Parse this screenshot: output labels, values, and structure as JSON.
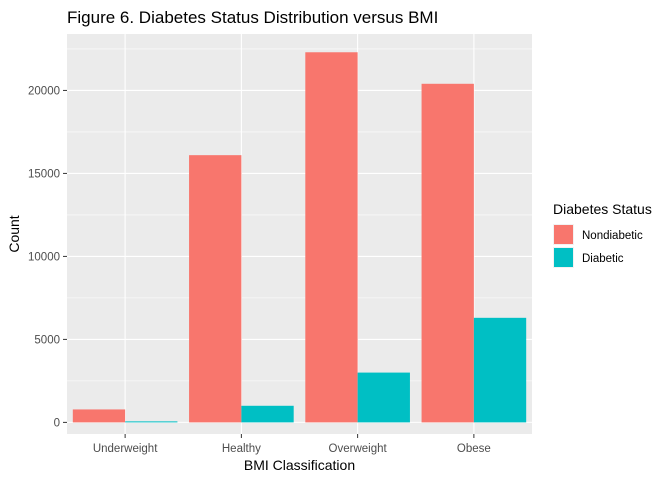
{
  "chart_data": {
    "type": "bar",
    "title": "Figure 6. Diabetes Status Distribution versus BMI",
    "xlabel": "BMI Classification",
    "ylabel": "Count",
    "categories": [
      "Underweight",
      "Healthy",
      "Overweight",
      "Obese"
    ],
    "series": [
      {
        "name": "Nondiabetic",
        "color": "#F8766D",
        "values": [
          780,
          16100,
          22300,
          20400
        ]
      },
      {
        "name": "Diabetic",
        "color": "#00BFC4",
        "values": [
          60,
          1000,
          3000,
          6300
        ]
      }
    ],
    "ylim": [
      -700,
      23400
    ],
    "yticks": [
      0,
      5000,
      10000,
      15000,
      20000
    ],
    "grid": true,
    "panel_background": "#EBEBEB",
    "legend": {
      "title": "Diabetes Status",
      "position": "right"
    }
  }
}
